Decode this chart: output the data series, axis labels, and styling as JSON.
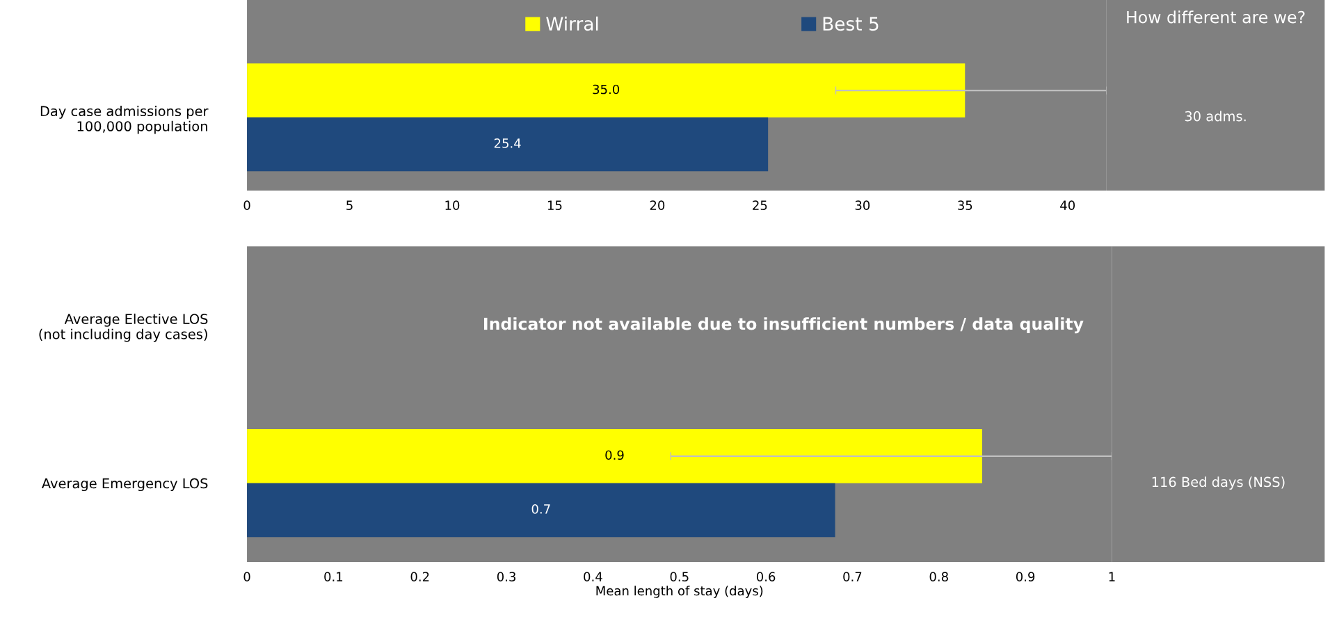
{
  "chart_data": [
    {
      "type": "bar",
      "orientation": "horizontal",
      "categories": [
        "Day case admissions per\n100,000 population"
      ],
      "series": [
        {
          "name": "Wirral",
          "color": "#ffff00",
          "values": [
            35.0
          ],
          "value_labels": [
            "35.0"
          ],
          "errors": [
            [
              28.7,
              41.9
            ]
          ]
        },
        {
          "name": "Best 5",
          "color": "#1f497d",
          "values": [
            25.4
          ],
          "value_labels": [
            "25.4"
          ]
        }
      ],
      "xlim": [
        0,
        41.9
      ],
      "xticks": [
        0,
        5,
        10,
        15,
        20,
        25,
        30,
        35,
        40
      ],
      "legend": "top",
      "grid": false,
      "annotations": [
        "How different are we?",
        "30 adms."
      ]
    },
    {
      "type": "bar",
      "orientation": "horizontal",
      "categories": [
        "Average Elective LOS\n(not including day cases)",
        "Average Emergency LOS"
      ],
      "series": [
        {
          "color": "#ffff00",
          "values": [
            null,
            0.85
          ],
          "value_labels": [
            null,
            "0.9"
          ],
          "errors": [
            null,
            [
              0.49,
              1.0
            ]
          ]
        },
        {
          "color": "#1f497d",
          "values": [
            null,
            0.68
          ],
          "value_labels": [
            null,
            "0.7"
          ]
        }
      ],
      "xlim": [
        0,
        1
      ],
      "xticks": [
        0,
        0.1,
        0.2,
        0.3,
        0.4,
        0.5,
        0.6,
        0.7,
        0.8,
        0.9,
        1
      ],
      "xlabel": "Mean length of stay (days)",
      "grid": false,
      "annotations": [
        "Indicator not available due to insufficient numbers / data quality",
        "116 Bed days (NSS)"
      ]
    }
  ]
}
